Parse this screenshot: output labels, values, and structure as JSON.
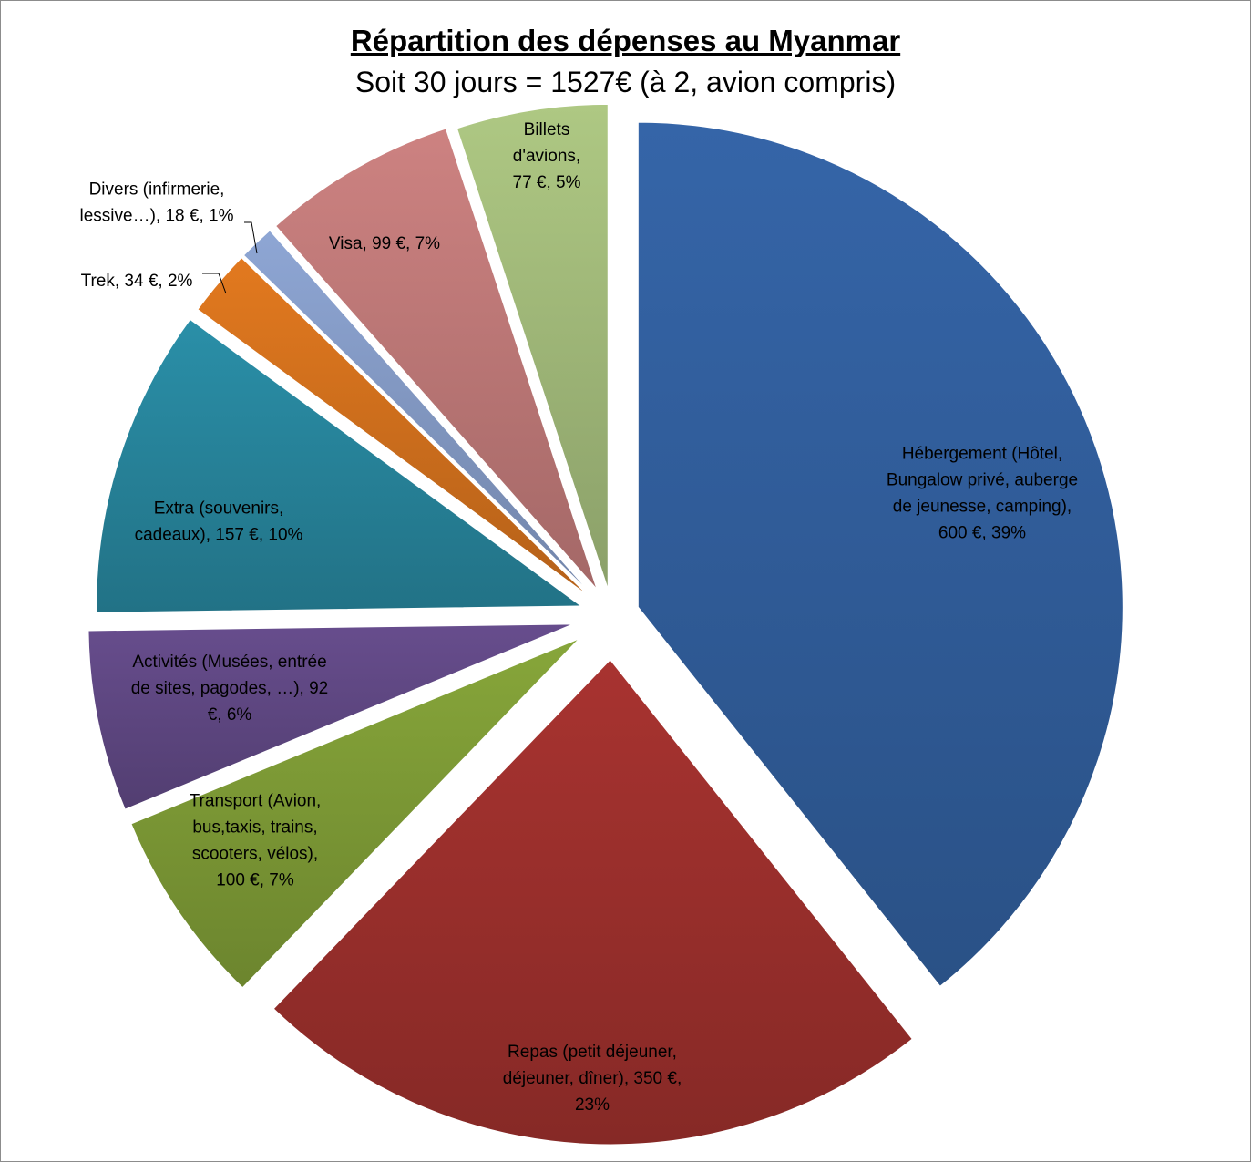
{
  "chart_data": {
    "type": "pie",
    "title": "Répartition des dépenses au Myanmar",
    "subtitle": "Soit 30 jours = 1527€ (à 2, avion compris)",
    "slices": [
      {
        "label_lines": [
          "Hébergement (Hôtel,",
          "Bungalow privé, auberge",
          "de jeunesse, camping),",
          "600 €, 39%"
        ],
        "value": 600,
        "color": "#3565a8"
      },
      {
        "label_lines": [
          "Repas (petit déjeuner,",
          "déjeuner, dîner), 350 €,",
          "23%"
        ],
        "value": 350,
        "color": "#a83330"
      },
      {
        "label_lines": [
          "Transport (Avion,",
          "bus,taxis, trains,",
          "scooters, vélos),",
          "100 €, 7%"
        ],
        "value": 100,
        "color": "#87a63a"
      },
      {
        "label_lines": [
          "Activités (Musées, entrée",
          "de sites, pagodes, …), 92",
          "€, 6%"
        ],
        "value": 92,
        "color": "#674d8d"
      },
      {
        "label_lines": [
          "Extra (souvenirs,",
          "cadeaux), 157 €, 10%"
        ],
        "value": 157,
        "color": "#2a8fa8"
      },
      {
        "label_lines": [
          "Trek, 34 €, 2%"
        ],
        "value": 34,
        "color": "#e2791f"
      },
      {
        "label_lines": [
          "Divers (infirmerie,",
          "lessive…), 18 €, 1%"
        ],
        "value": 18,
        "color": "#8ea6d4"
      },
      {
        "label_lines": [
          "Visa, 99 €, 7%"
        ],
        "value": 99,
        "color": "#cd8281"
      },
      {
        "label_lines": [
          "Billets",
          "d'avions,",
          "77 €, 5%"
        ],
        "value": 77,
        "color": "#aec883"
      }
    ]
  }
}
